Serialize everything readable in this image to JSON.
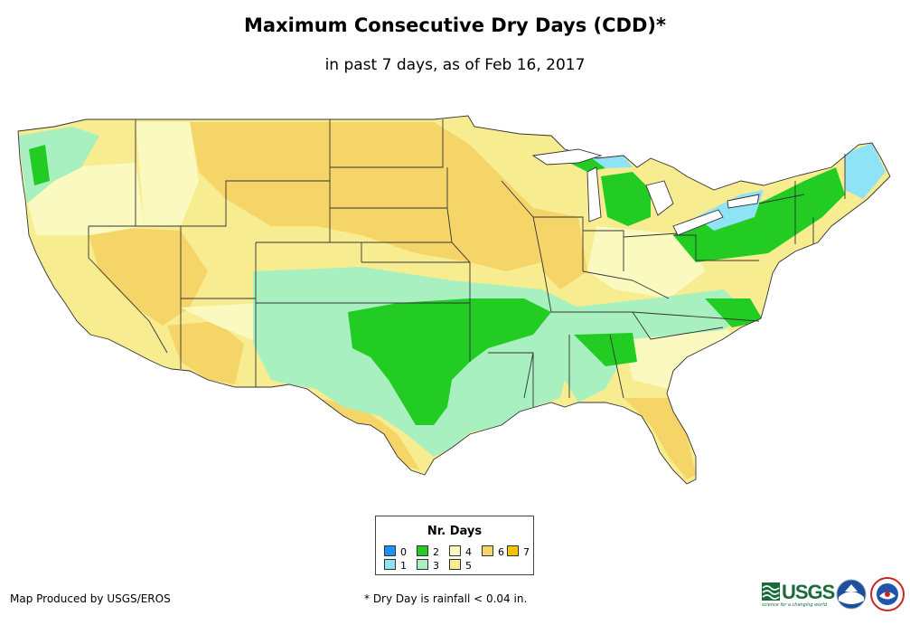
{
  "title": "Maximum Consecutive Dry Days (CDD)*",
  "subtitle": "in past 7 days, as of Feb 16, 2017",
  "legend": {
    "title": "Nr. Days",
    "items": [
      {
        "label": "0",
        "color": "#1e90ff"
      },
      {
        "label": "1",
        "color": "#8fe3f7"
      },
      {
        "label": "2",
        "color": "#22cc22"
      },
      {
        "label": "3",
        "color": "#a8f0c0"
      },
      {
        "label": "4",
        "color": "#fafac0"
      },
      {
        "label": "5",
        "color": "#f8ec90"
      },
      {
        "label": "6",
        "color": "#f5d468"
      },
      {
        "label": "7",
        "color": "#f7c200"
      }
    ]
  },
  "footer": {
    "producer": "Map Produced by USGS/EROS",
    "note": "* Dry Day is rainfall < 0.04 in."
  },
  "logos": {
    "usgs": "USGS",
    "usgs_tagline": "science for a changing world"
  },
  "colors": {
    "background": "#ffffff",
    "state_border": "#333333"
  }
}
